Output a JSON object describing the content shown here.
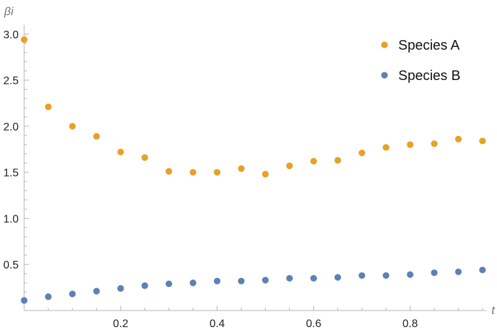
{
  "chart_data": {
    "type": "scatter",
    "xlabel": "t",
    "ylabel": "βi",
    "xlim": [
      0,
      0.95
    ],
    "ylim": [
      0.0,
      3.07
    ],
    "xticks_major": [
      0.2,
      0.4,
      0.6,
      0.8
    ],
    "xtick_labels": [
      "0.2",
      "0.4",
      "0.6",
      "0.8"
    ],
    "yticks_major": [
      0.5,
      1.0,
      1.5,
      2.0,
      2.5,
      3.0
    ],
    "ytick_labels": [
      "0.5",
      "1.0",
      "1.5",
      "2.0",
      "2.5",
      "3.0"
    ],
    "grid": false,
    "legend_position": "top-right",
    "series": [
      {
        "name": "Species A",
        "color": "#E8A127",
        "x": [
          0.0,
          0.05,
          0.1,
          0.15,
          0.2,
          0.25,
          0.3,
          0.35,
          0.4,
          0.45,
          0.5,
          0.55,
          0.6,
          0.65,
          0.7,
          0.75,
          0.8,
          0.85,
          0.9,
          0.95
        ],
        "y": [
          2.94,
          2.21,
          2.0,
          1.89,
          1.72,
          1.66,
          1.51,
          1.5,
          1.5,
          1.54,
          1.48,
          1.57,
          1.62,
          1.63,
          1.71,
          1.77,
          1.8,
          1.81,
          1.86,
          1.84
        ]
      },
      {
        "name": "Species B",
        "color": "#5E81B5",
        "x": [
          0.0,
          0.05,
          0.1,
          0.15,
          0.2,
          0.25,
          0.3,
          0.35,
          0.4,
          0.45,
          0.5,
          0.55,
          0.6,
          0.65,
          0.7,
          0.75,
          0.8,
          0.85,
          0.9,
          0.95
        ],
        "y": [
          0.11,
          0.15,
          0.18,
          0.21,
          0.24,
          0.27,
          0.29,
          0.3,
          0.32,
          0.32,
          0.33,
          0.35,
          0.35,
          0.36,
          0.38,
          0.38,
          0.39,
          0.41,
          0.42,
          0.44
        ]
      }
    ]
  }
}
